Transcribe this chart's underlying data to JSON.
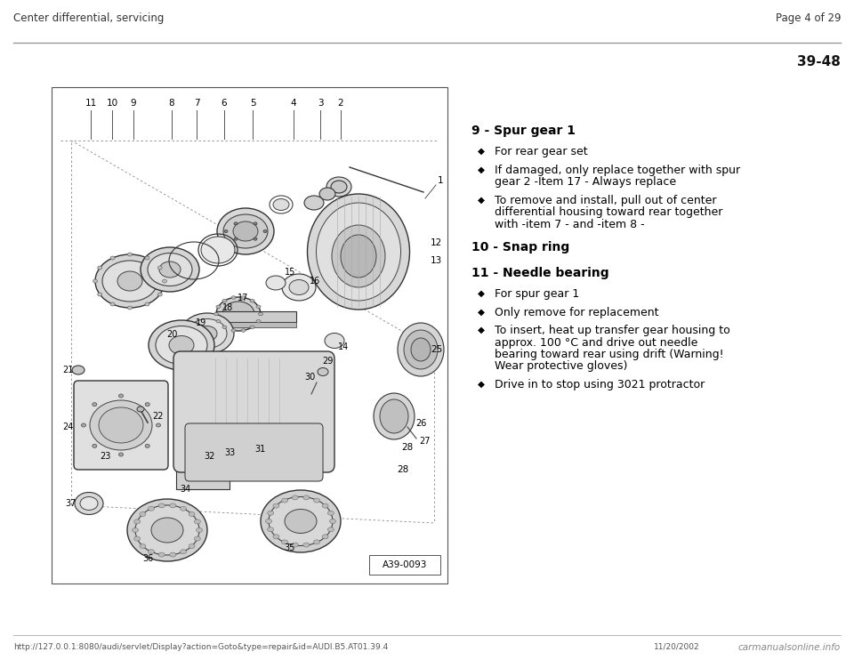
{
  "bg_color": "#ffffff",
  "header_left": "Center differential, servicing",
  "header_right": "Page 4 of 29",
  "page_number": "39-48",
  "footer_url": "http://127.0.0.1:8080/audi/servlet/Display?action=Goto&type=repair&id=AUDI.B5.AT01.39.4",
  "footer_date": "11/20/2002",
  "footer_logo": "carmanualsonline.info",
  "diagram_label": "A39-0093",
  "items": [
    {
      "number": "9",
      "title": "Spur gear 1",
      "bullets": [
        "For rear gear set",
        "If damaged, only replace together with spur\ngear 2 -Item 17 - Always replace",
        "To remove and install, pull out of center\ndifferential housing toward rear together\nwith -item 7 - and -item 8 -"
      ]
    },
    {
      "number": "10",
      "title": "Snap ring",
      "bullets": []
    },
    {
      "number": "11",
      "title": "Needle bearing",
      "bullets": [
        "For spur gear 1",
        "Only remove for replacement",
        "To insert, heat up transfer gear housing to\napprox. 100 °C and drive out needle\nbearing toward rear using drift (Warning!\nWear protective gloves)",
        "Drive in to stop using 3021 protractor"
      ]
    }
  ]
}
